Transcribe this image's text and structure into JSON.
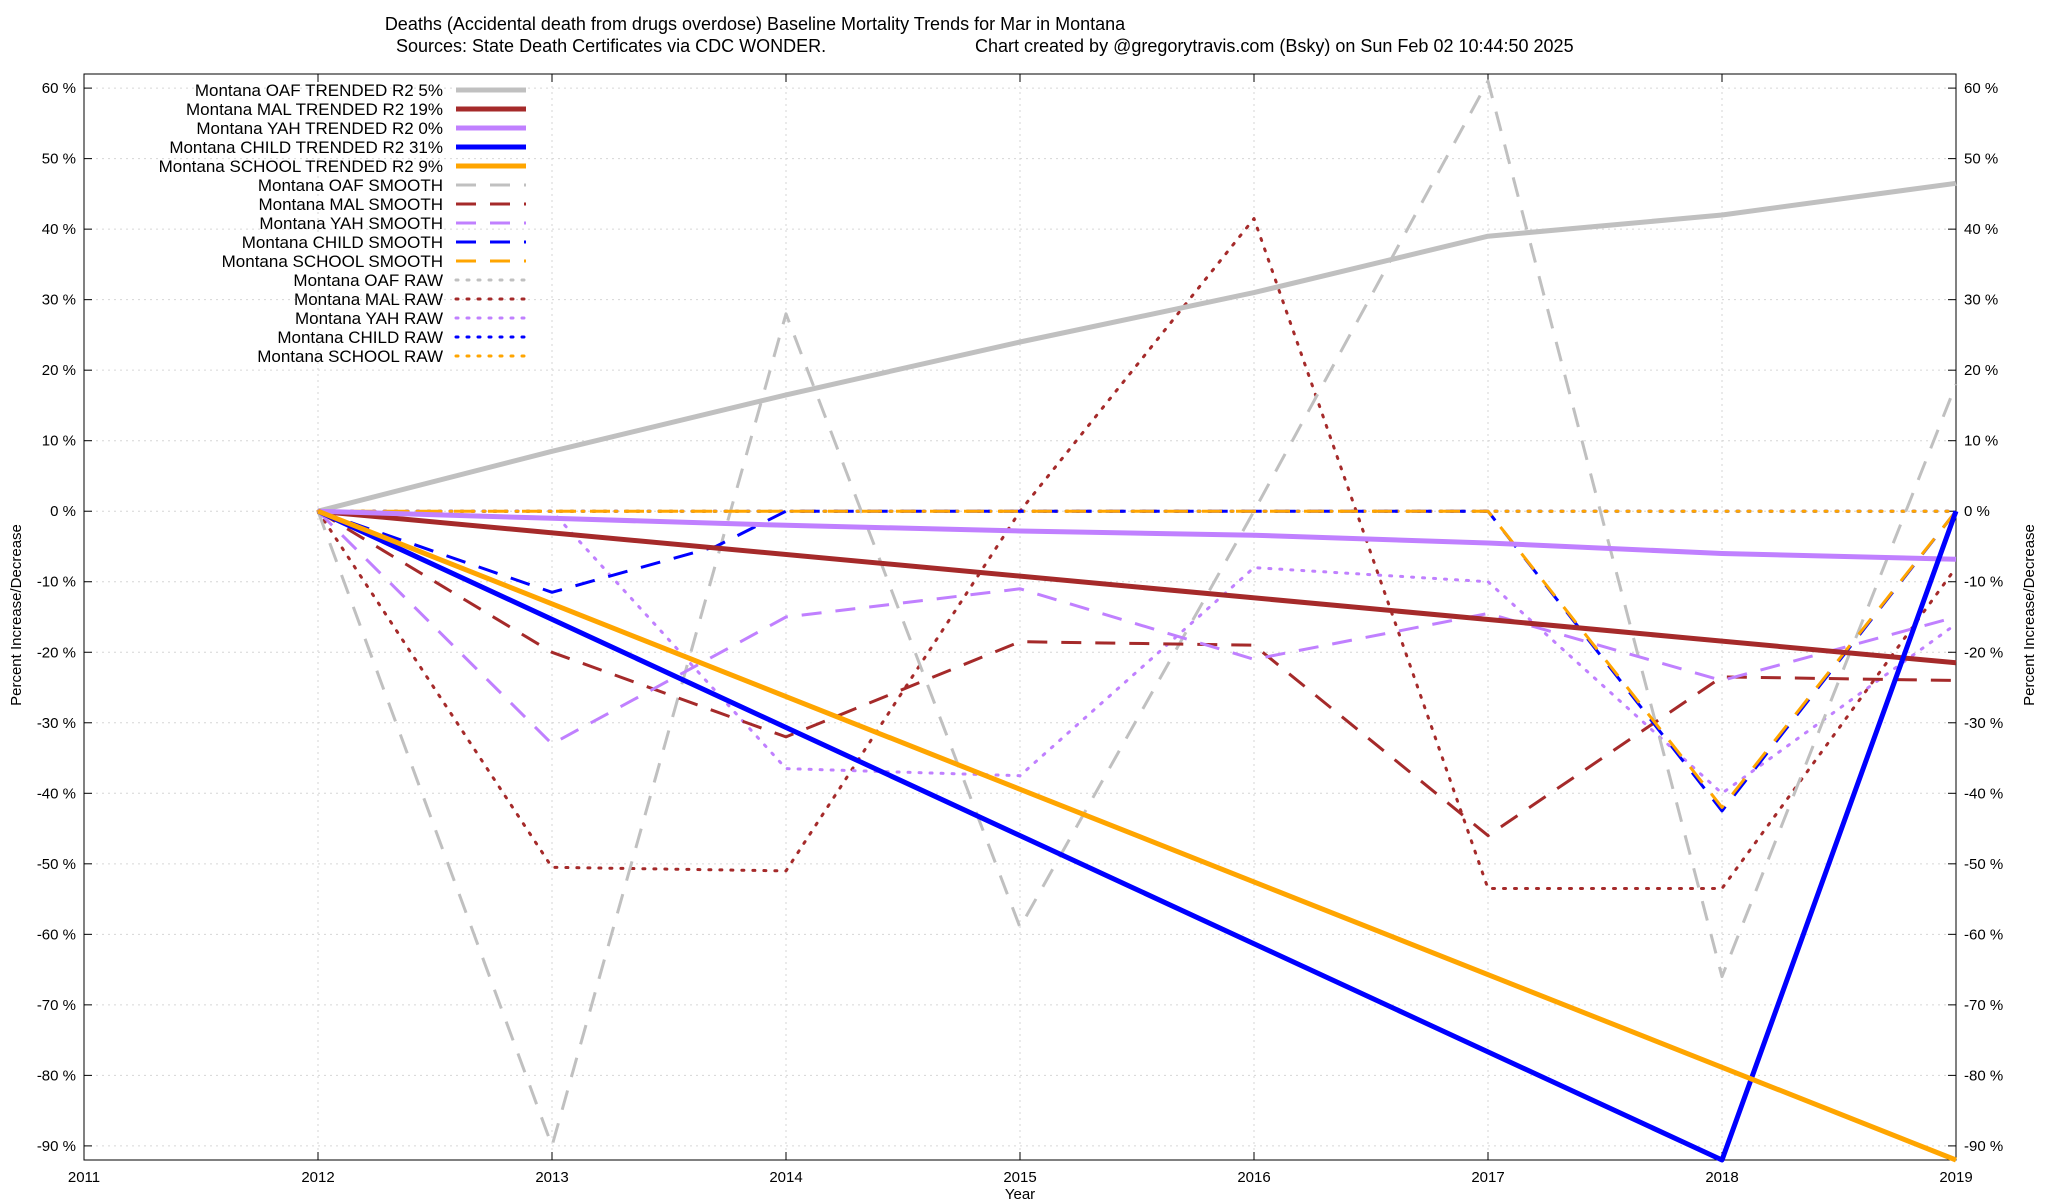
{
  "chart_data": {
    "type": "line",
    "title": "Deaths (Accidental death from drugs overdose)  Baseline Mortality Trends for Mar in Montana",
    "subtitle_left": "Sources: State Death Certificates via CDC WONDER.",
    "subtitle_right": "Chart created by @gregorytravis.com (Bsky) on Sun Feb 02 10:44:50 2025",
    "xlabel": "Year",
    "ylabel_left": "Percent Increase/Decrease",
    "ylabel_right": "Percent Increase/Decrease",
    "xlim": [
      2011,
      2019
    ],
    "ylim": [
      -92,
      62
    ],
    "x_ticks": [
      2011,
      2012,
      2013,
      2014,
      2015,
      2016,
      2017,
      2018,
      2019
    ],
    "x_tick_labels": [
      "2011",
      "2012",
      "2013",
      "2014",
      "2015",
      "2016",
      "2017",
      "2018",
      "2019"
    ],
    "y_ticks": [
      60,
      50,
      40,
      30,
      20,
      10,
      0,
      -10,
      -20,
      -30,
      -40,
      -50,
      -60,
      -70,
      -80,
      -90
    ],
    "y_tick_labels": [
      "60 %",
      "50 %",
      "40 %",
      "30 %",
      "20 %",
      "10 %",
      "0 %",
      "-10 %",
      "-20 %",
      "-30 %",
      "-40 %",
      "-50 %",
      "-60 %",
      "-70 %",
      "-80 %",
      "-90 %"
    ],
    "grid": true,
    "legend_position": "top-left",
    "series": [
      {
        "name": "Montana OAF TRENDED R2   5%",
        "color": "#c0c0c0",
        "style": "solid",
        "width": 5,
        "points": [
          [
            2012,
            0
          ],
          [
            2013,
            8.5
          ],
          [
            2014,
            16.5
          ],
          [
            2015,
            24
          ],
          [
            2016,
            31
          ],
          [
            2017,
            39
          ],
          [
            2018,
            42
          ],
          [
            2019,
            46.5
          ]
        ]
      },
      {
        "name": "Montana MAL TRENDED R2  19%",
        "color": "#a52a2a",
        "style": "solid",
        "width": 5,
        "points": [
          [
            2012,
            0
          ],
          [
            2019,
            -21.5
          ]
        ]
      },
      {
        "name": "Montana YAH TRENDED R2   0%",
        "color": "#c080ff",
        "style": "solid",
        "width": 5,
        "points": [
          [
            2012,
            0
          ],
          [
            2013,
            -1
          ],
          [
            2014,
            -2
          ],
          [
            2015,
            -2.8
          ],
          [
            2016,
            -3.4
          ],
          [
            2017,
            -4.5
          ],
          [
            2018,
            -6
          ],
          [
            2019,
            -6.8
          ]
        ]
      },
      {
        "name": "Montana CHILD TRENDED R2  31%",
        "color": "#0000ff",
        "style": "solid",
        "width": 5,
        "points": [
          [
            2012,
            0
          ],
          [
            2018,
            -92
          ],
          [
            2019,
            0
          ]
        ]
      },
      {
        "name": "Montana SCHOOL TRENDED R2   9%",
        "color": "#ffa500",
        "style": "solid",
        "width": 5,
        "points": [
          [
            2012,
            0
          ],
          [
            2019,
            -92
          ]
        ]
      },
      {
        "name": "Montana OAF SMOOTH",
        "color": "#c0c0c0",
        "style": "dash",
        "width": 3,
        "points": [
          [
            2012,
            0
          ],
          [
            2013,
            -90
          ],
          [
            2014,
            28
          ],
          [
            2015,
            -59
          ],
          [
            2016,
            0
          ],
          [
            2017,
            61
          ],
          [
            2018,
            -66
          ],
          [
            2019,
            18
          ]
        ]
      },
      {
        "name": "Montana MAL SMOOTH",
        "color": "#a52a2a",
        "style": "dash",
        "width": 3,
        "points": [
          [
            2012,
            0
          ],
          [
            2013,
            -20
          ],
          [
            2014,
            -32
          ],
          [
            2015,
            -18.5
          ],
          [
            2016,
            -19
          ],
          [
            2017,
            -46
          ],
          [
            2018,
            -23.5
          ],
          [
            2019,
            -24
          ]
        ]
      },
      {
        "name": "Montana YAH SMOOTH",
        "color": "#c080ff",
        "style": "dash",
        "width": 3,
        "points": [
          [
            2012,
            0
          ],
          [
            2013,
            -33
          ],
          [
            2014,
            -15
          ],
          [
            2015,
            -11
          ],
          [
            2016,
            -21
          ],
          [
            2017,
            -14.5
          ],
          [
            2018,
            -24
          ],
          [
            2019,
            -15
          ]
        ]
      },
      {
        "name": "Montana CHILD SMOOTH",
        "color": "#0000ff",
        "style": "dash",
        "width": 3,
        "points": [
          [
            2012,
            0
          ],
          [
            2013,
            -11.5
          ],
          [
            2013.7,
            -5
          ],
          [
            2014,
            0
          ],
          [
            2015,
            0
          ],
          [
            2016,
            0
          ],
          [
            2017,
            0
          ],
          [
            2018,
            -42.5
          ],
          [
            2019,
            0
          ]
        ]
      },
      {
        "name": "Montana SCHOOL SMOOTH",
        "color": "#ffa500",
        "style": "dash",
        "width": 3,
        "points": [
          [
            2012,
            0
          ],
          [
            2013,
            0
          ],
          [
            2014,
            0
          ],
          [
            2015,
            0
          ],
          [
            2016,
            0
          ],
          [
            2017,
            0
          ],
          [
            2018,
            -42
          ],
          [
            2019,
            0
          ]
        ]
      },
      {
        "name": "Montana OAF RAW",
        "color": "#c0c0c0",
        "style": "dot",
        "width": 3,
        "points": [
          [
            2012,
            0
          ],
          [
            2013,
            0
          ],
          [
            2014,
            0
          ],
          [
            2015,
            0
          ],
          [
            2016,
            0
          ],
          [
            2017,
            0
          ],
          [
            2018,
            0
          ],
          [
            2019,
            0
          ]
        ]
      },
      {
        "name": "Montana MAL RAW",
        "color": "#a52a2a",
        "style": "dot",
        "width": 3,
        "points": [
          [
            2012,
            0
          ],
          [
            2013,
            -50.5
          ],
          [
            2014,
            -51
          ],
          [
            2015,
            0
          ],
          [
            2016,
            41.5
          ],
          [
            2017,
            -53.5
          ],
          [
            2018,
            -53.5
          ],
          [
            2019,
            -8
          ]
        ]
      },
      {
        "name": "Montana YAH RAW",
        "color": "#c080ff",
        "style": "dot",
        "width": 3,
        "points": [
          [
            2012,
            0
          ],
          [
            2013,
            0
          ],
          [
            2014,
            -36.5
          ],
          [
            2015,
            -37.5
          ],
          [
            2016,
            -8
          ],
          [
            2017,
            -10
          ],
          [
            2018,
            -40
          ],
          [
            2019,
            -16
          ]
        ]
      },
      {
        "name": "Montana CHILD RAW",
        "color": "#0000ff",
        "style": "dot",
        "width": 3,
        "points": [
          [
            2012,
            0
          ],
          [
            2013,
            0
          ],
          [
            2014,
            0
          ],
          [
            2015,
            0
          ],
          [
            2016,
            0
          ],
          [
            2017,
            0
          ],
          [
            2018,
            0
          ],
          [
            2019,
            0
          ]
        ]
      },
      {
        "name": "Montana SCHOOL RAW",
        "color": "#ffa500",
        "style": "dot",
        "width": 3,
        "points": [
          [
            2012,
            0
          ],
          [
            2013,
            0
          ],
          [
            2014,
            0
          ],
          [
            2015,
            0
          ],
          [
            2016,
            0
          ],
          [
            2017,
            0
          ],
          [
            2018,
            0
          ],
          [
            2019,
            0
          ]
        ]
      }
    ]
  }
}
